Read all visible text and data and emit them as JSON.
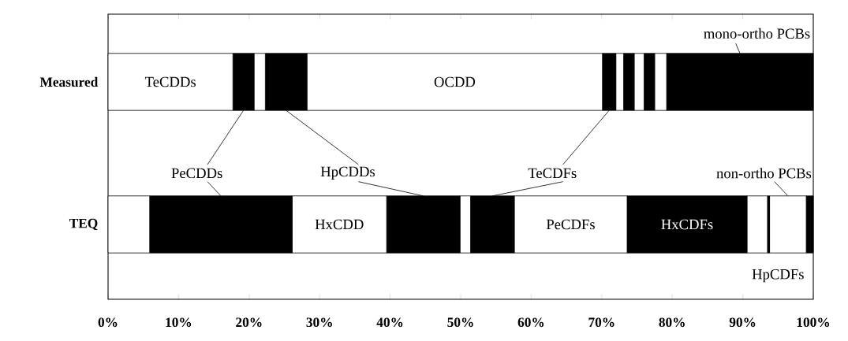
{
  "chart_data": {
    "type": "bar",
    "orientation": "horizontal",
    "stacked": true,
    "categories": [
      "Measured",
      "TEQ"
    ],
    "series": [
      {
        "name": "TeCDDs",
        "color": "#ffffff",
        "values": [
          17.7,
          5.9
        ]
      },
      {
        "name": "PeCDDs",
        "color": "#000000",
        "values": [
          3.0,
          20.2
        ]
      },
      {
        "name": "HxCDD",
        "color": "#ffffff",
        "values": [
          1.6,
          13.4
        ]
      },
      {
        "name": "HpCDDs",
        "color": "#000000",
        "values": [
          5.9,
          10.4
        ]
      },
      {
        "name": "OCDD",
        "color": "#ffffff",
        "values": [
          41.9,
          1.5
        ]
      },
      {
        "name": "TeCDFs",
        "color": "#000000",
        "values": [
          1.9,
          6.2
        ]
      },
      {
        "name": "PeCDFs",
        "color": "#ffffff",
        "values": [
          1.1,
          16.0
        ]
      },
      {
        "name": "HxCDFs",
        "color": "#000000",
        "values": [
          1.5,
          17.0
        ]
      },
      {
        "name": "HpCDFs",
        "color": "#ffffff",
        "values": [
          1.4,
          2.9
        ]
      },
      {
        "color": "#000000",
        "values": [
          1.5,
          0.3
        ]
      },
      {
        "name": "non-ortho PCBs",
        "color": "#ffffff",
        "values": [
          1.7,
          5.2
        ]
      },
      {
        "name": "mono-ortho PCBs",
        "color": "#000000",
        "values": [
          20.8,
          1.0
        ]
      }
    ],
    "xlim": [
      0,
      100
    ],
    "xticks": [
      {
        "value": 0,
        "label": "0%"
      },
      {
        "value": 10,
        "label": "10%"
      },
      {
        "value": 20,
        "label": "20%"
      },
      {
        "value": 30,
        "label": "30%"
      },
      {
        "value": 40,
        "label": "40%"
      },
      {
        "value": 50,
        "label": "50%"
      },
      {
        "value": 60,
        "label": "60%"
      },
      {
        "value": 70,
        "label": "70%"
      },
      {
        "value": 80,
        "label": "80%"
      },
      {
        "value": 90,
        "label": "90%"
      },
      {
        "value": 100,
        "label": "100%"
      }
    ]
  }
}
